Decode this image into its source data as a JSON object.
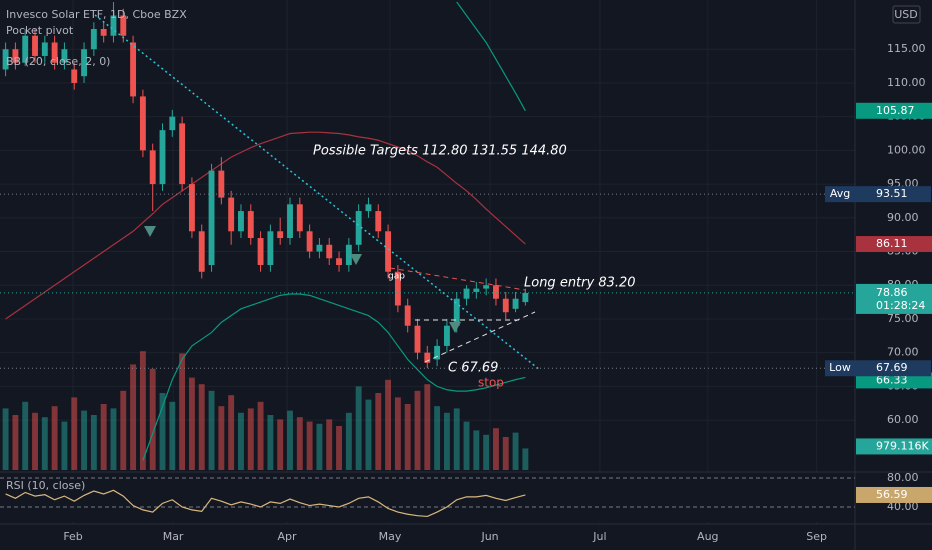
{
  "chart_data": {
    "type": "candlestick",
    "title": "Invesco Solar ETF, 1D, Cboe BZX",
    "indicators": [
      "Pocket pivot",
      "BB (20, close, 2, 0)"
    ],
    "rsi_title": "RSI (10, close)",
    "currency": "USD",
    "countdown": "01:28:24",
    "up_color": "#26a69a",
    "down_color": "#ef5350",
    "xlim": [
      -0.57,
      86.1
    ],
    "xticks": [
      {
        "value": 6.88,
        "label": "Feb"
      },
      {
        "value": 17.08,
        "label": "Mar"
      },
      {
        "value": 28.7,
        "label": "Apr"
      },
      {
        "value": 39.2,
        "label": "May"
      },
      {
        "value": 49.4,
        "label": "Jun"
      },
      {
        "value": 60.6,
        "label": "Jul"
      },
      {
        "value": 71.6,
        "label": "Aug"
      },
      {
        "value": 82.7,
        "label": "Sep"
      }
    ],
    "ylim": [
      52.6,
      122.3
    ],
    "yticks": [
      {
        "value": 60,
        "label": "60.00"
      },
      {
        "value": 65,
        "label": "65.00"
      },
      {
        "value": 70,
        "label": "70.00"
      },
      {
        "value": 75,
        "label": "75.00"
      },
      {
        "value": 80,
        "label": "80.00"
      },
      {
        "value": 85,
        "label": "85.00"
      },
      {
        "value": 90,
        "label": "90.00"
      },
      {
        "value": 95,
        "label": "95.00"
      },
      {
        "value": 100,
        "label": "100.00"
      },
      {
        "value": 105,
        "label": "105.00"
      },
      {
        "value": 110,
        "label": "110.00"
      },
      {
        "value": 115,
        "label": "115.00"
      }
    ],
    "ohlc": [
      [
        112,
        116,
        111,
        115
      ],
      [
        115,
        116,
        112,
        113
      ],
      [
        113,
        118,
        112.5,
        117
      ],
      [
        117,
        118,
        113,
        114
      ],
      [
        114,
        117,
        113,
        116
      ],
      [
        116,
        117,
        112,
        113
      ],
      [
        113,
        116,
        112,
        115
      ],
      [
        112,
        113,
        109,
        110
      ],
      [
        111,
        116,
        110,
        115
      ],
      [
        115,
        119,
        114,
        118
      ],
      [
        118,
        119,
        116,
        117
      ],
      [
        117,
        122,
        116,
        120
      ],
      [
        120,
        121,
        116,
        117
      ],
      [
        116,
        117,
        107,
        108
      ],
      [
        108,
        109,
        99,
        100
      ],
      [
        100,
        101,
        91,
        95
      ],
      [
        95,
        104,
        94,
        103
      ],
      [
        103,
        106,
        102,
        105
      ],
      [
        104,
        105,
        94,
        95
      ],
      [
        95,
        96,
        87,
        88
      ],
      [
        88,
        89,
        81,
        82
      ],
      [
        83,
        98,
        82,
        97
      ],
      [
        97,
        99,
        92,
        93
      ],
      [
        93,
        94,
        86,
        88
      ],
      [
        88,
        92,
        87,
        91
      ],
      [
        91,
        92,
        86,
        87
      ],
      [
        87,
        88,
        82,
        83
      ],
      [
        83,
        89,
        82,
        88
      ],
      [
        88,
        90,
        86,
        87
      ],
      [
        87,
        93,
        86,
        92
      ],
      [
        92,
        93,
        87,
        88
      ],
      [
        88,
        89,
        84,
        85
      ],
      [
        85,
        87,
        84,
        86
      ],
      [
        86,
        87,
        83,
        84
      ],
      [
        84,
        85,
        82,
        83
      ],
      [
        83,
        87,
        82,
        86
      ],
      [
        86,
        92,
        85,
        91
      ],
      [
        91,
        93,
        90,
        92
      ],
      [
        91,
        92,
        87,
        88
      ],
      [
        88,
        89,
        81,
        82
      ],
      [
        82,
        83,
        76,
        77
      ],
      [
        77,
        78,
        73,
        74
      ],
      [
        74,
        75,
        69,
        70
      ],
      [
        70,
        71,
        67.69,
        68.5
      ],
      [
        69,
        72,
        68,
        71
      ],
      [
        71,
        75,
        70,
        74
      ],
      [
        74,
        79,
        73,
        78
      ],
      [
        78,
        80,
        77,
        79.5
      ],
      [
        79,
        80.5,
        78,
        79.5
      ],
      [
        79.5,
        81,
        78.5,
        80
      ],
      [
        80,
        81,
        77,
        78
      ],
      [
        78,
        79,
        75,
        76
      ],
      [
        76.5,
        79,
        76,
        78
      ],
      [
        77.5,
        79.5,
        77,
        78.86
      ]
    ],
    "volume_ylim": [
      0,
      10000000
    ],
    "volume": [
      2800000,
      2500000,
      3100000,
      2600000,
      2400000,
      2900000,
      2200000,
      3300000,
      2700000,
      2500000,
      3000000,
      2800000,
      3600000,
      4800000,
      5400000,
      4600000,
      3500000,
      3100000,
      5300000,
      4200000,
      3900000,
      3600000,
      2900000,
      3400000,
      2600000,
      2800000,
      3100000,
      2500000,
      2300000,
      2700000,
      2400000,
      2200000,
      2100000,
      2300000,
      2000000,
      2600000,
      3800000,
      3200000,
      3500000,
      4100000,
      3300000,
      3000000,
      3600000,
      3900000,
      2900000,
      2600000,
      2800000,
      2200000,
      1800000,
      1600000,
      1900000,
      1500000,
      1700000,
      979116
    ],
    "volume_value_labels": {
      "53": "979.116K"
    },
    "bb_middle": [
      75,
      76,
      77,
      78,
      79,
      80,
      81,
      82,
      83,
      84,
      85,
      86,
      87,
      88,
      89.3,
      90.6,
      92,
      93,
      94,
      95,
      96,
      97,
      98,
      99,
      99.7,
      100.4,
      101,
      101.5,
      102,
      102.5,
      102.6,
      102.7,
      102.7,
      102.6,
      102.5,
      102.3,
      102,
      101.8,
      101.5,
      101,
      100.5,
      100,
      99.2,
      98.3,
      97.5,
      96.3,
      95.1,
      94,
      92.7,
      91.3,
      90,
      88.7,
      87.4,
      86.11
    ],
    "bb_upper": [
      null,
      null,
      null,
      null,
      null,
      null,
      null,
      null,
      null,
      null,
      null,
      null,
      null,
      null,
      null,
      null,
      null,
      null,
      null,
      null,
      null,
      null,
      null,
      null,
      null,
      null,
      null,
      null,
      null,
      null,
      null,
      null,
      null,
      null,
      null,
      null,
      null,
      null,
      null,
      null,
      null,
      null,
      null,
      null,
      null,
      null,
      122,
      120,
      118,
      116,
      113.5,
      111,
      108.5,
      105.87
    ],
    "bb_lower": [
      null,
      null,
      null,
      null,
      null,
      null,
      null,
      null,
      null,
      null,
      null,
      null,
      null,
      null,
      54,
      58,
      62,
      66,
      69,
      71,
      72,
      73,
      74.5,
      75.5,
      76.5,
      77,
      77.5,
      78,
      78.5,
      78.7,
      78.7,
      78.5,
      78,
      77.5,
      77,
      76.5,
      76,
      75.5,
      74.5,
      73,
      71,
      69,
      67.5,
      66,
      65,
      64.5,
      64.3,
      64.3,
      64.5,
      64.8,
      65.2,
      65.6,
      66,
      66.33
    ],
    "rsi": [
      58,
      52,
      60,
      55,
      57,
      50,
      55,
      48,
      56,
      62,
      58,
      63,
      55,
      42,
      36,
      33,
      45,
      50,
      40,
      36,
      34,
      52,
      48,
      43,
      47,
      44,
      40,
      47,
      45,
      51,
      46,
      42,
      44,
      42,
      40,
      45,
      52,
      54,
      47,
      38,
      33,
      30,
      28,
      27,
      33,
      40,
      50,
      54,
      54,
      56,
      52,
      49,
      53,
      56.59
    ],
    "rsi_ylim": [
      19.3,
      86.9
    ],
    "rsi_yticks": [
      {
        "value": 80,
        "label": "80.00"
      },
      {
        "value": 40,
        "label": "40.00"
      }
    ],
    "avg": {
      "name": "Avg",
      "value": 93.51
    },
    "low": {
      "name": "Low",
      "value": 67.69
    },
    "annotations": {
      "targets": "Possible Targets  112.80  131.55  144.80",
      "entry": "Long entry  83.20",
      "close": "C 67.69",
      "stop": "stop",
      "gap": "gap"
    }
  }
}
